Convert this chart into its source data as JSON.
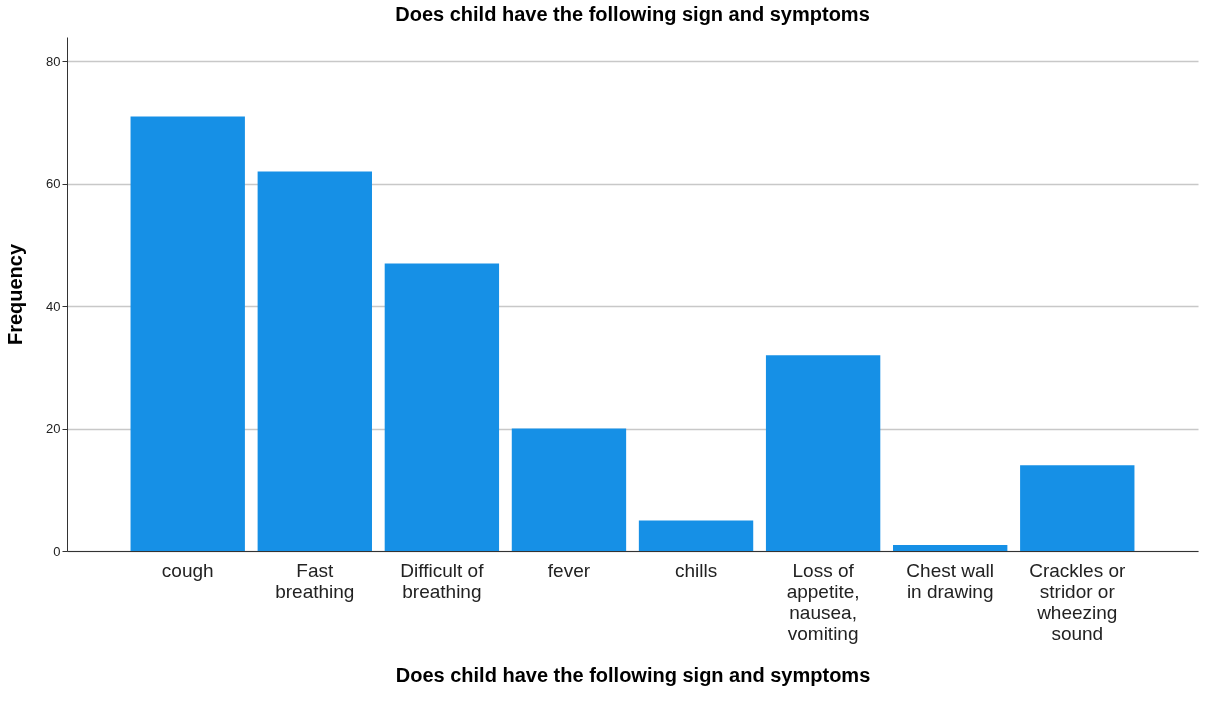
{
  "chart_data": {
    "type": "bar",
    "title": "Does child have the following sign and symptoms",
    "xlabel": "Does child have the following sign and symptoms",
    "ylabel": "Frequency",
    "categories": [
      "cough",
      "Fast breathing",
      "Difficult of breathing",
      "fever",
      "chills",
      "Loss of appetite, nausea, vomiting",
      "Chest wall in drawing",
      "Crackles or stridor or wheezing sound"
    ],
    "values": [
      71,
      62,
      47,
      20,
      5,
      32,
      1,
      14
    ],
    "color": "#1690e6",
    "ylim": [
      0,
      84
    ],
    "yticks": [
      0,
      20,
      40,
      60,
      80
    ],
    "grid": "y"
  }
}
